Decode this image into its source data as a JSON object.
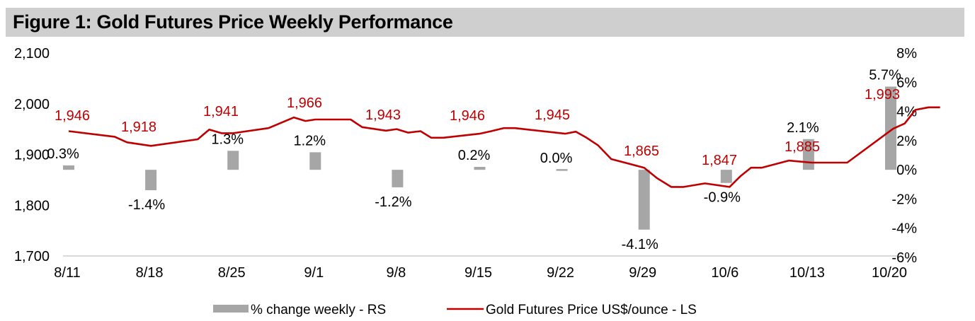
{
  "figure": {
    "title": "Figure 1: Gold Futures Price Weekly Performance"
  },
  "colors": {
    "line": "#c00000",
    "bar": "#a6a6a6",
    "title_bg": "#d0cfd0",
    "axis": "#d9d9d9",
    "text": "#000000"
  },
  "chart_data": {
    "type": "bar+line",
    "title": "Figure 1: Gold Futures Price Weekly Performance",
    "categories": [
      "8/11",
      "8/18",
      "8/25",
      "9/1",
      "9/8",
      "9/15",
      "9/22",
      "9/29",
      "10/6",
      "10/13",
      "10/20"
    ],
    "left_axis": {
      "label": "Gold Futures Price US$/ounce",
      "ylim": [
        1700,
        2100
      ],
      "ticks": [
        1700,
        1800,
        1900,
        2000,
        2100
      ],
      "tick_labels": [
        "1,700",
        "1,800",
        "1,900",
        "2,000",
        "2,100"
      ]
    },
    "right_axis": {
      "label": "% change weekly",
      "ylim": [
        -6,
        8
      ],
      "ticks": [
        -6,
        -4,
        -2,
        0,
        2,
        4,
        6,
        8
      ],
      "tick_labels": [
        "-6%",
        "-4%",
        "-2%",
        "0%",
        "2%",
        "4%",
        "6%",
        "8%"
      ]
    },
    "series": [
      {
        "name": "% change weekly - RS",
        "type": "bar",
        "axis": "right",
        "values": [
          0.3,
          -1.4,
          1.3,
          1.2,
          -1.2,
          0.2,
          0.0,
          -4.1,
          -0.9,
          2.1,
          5.7
        ],
        "labels": [
          "0.3%",
          "-1.4%",
          "1.3%",
          "1.2%",
          "-1.2%",
          "0.2%",
          "0.0%",
          "-4.1%",
          "-0.9%",
          "2.1%",
          "5.7%"
        ]
      },
      {
        "name": "Gold Futures Price US$/ounce - LS",
        "type": "line",
        "axis": "left",
        "weekly_labels": [
          "1,946",
          "1,918",
          "1,941",
          "1,966",
          "1,943",
          "1,946",
          "1,945",
          "1,865",
          "1,847",
          "1,885",
          "1,993"
        ],
        "x": [
          0,
          0.56,
          0.71,
          1.0,
          1.57,
          1.71,
          1.86,
          2.0,
          2.43,
          2.74,
          2.88,
          3.0,
          3.43,
          3.57,
          3.86,
          3.99,
          4.13,
          4.28,
          4.41,
          4.56,
          5.0,
          5.14,
          5.29,
          5.43,
          5.59,
          6.04,
          6.17,
          6.3,
          6.44,
          6.6,
          7.0,
          7.16,
          7.33,
          7.48,
          7.74,
          8.04,
          8.17,
          8.3,
          8.43,
          8.76,
          9.04,
          9.17,
          9.32,
          9.47,
          10.03,
          10.17,
          10.3,
          10.46,
          10.6
        ],
        "values": [
          1946,
          1935,
          1924,
          1917,
          1930,
          1949,
          1942,
          1942,
          1952,
          1973,
          1966,
          1969,
          1969,
          1954,
          1947,
          1950,
          1943,
          1946,
          1933,
          1933,
          1941,
          1946,
          1952,
          1952,
          1949,
          1941,
          1945,
          1933,
          1918,
          1891,
          1874,
          1853,
          1836,
          1836,
          1843,
          1836,
          1857,
          1874,
          1874,
          1888,
          1884,
          1884,
          1884,
          1884,
          1951,
          1961,
          1988,
          1993,
          1993
        ]
      }
    ],
    "legend": {
      "position": "bottom",
      "entries": [
        "% change weekly - RS",
        "Gold Futures Price US$/ounce - LS"
      ]
    },
    "grid": false
  }
}
